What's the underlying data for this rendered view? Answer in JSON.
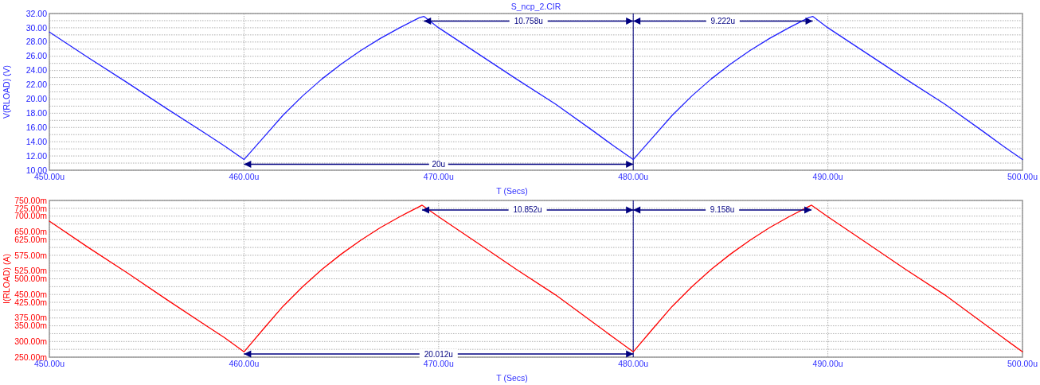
{
  "chart_data": [
    {
      "type": "line",
      "title": "S_ncp_2.CIR",
      "xlabel": "T (Secs)",
      "ylabel": "V(RLOAD) (V)",
      "x": [
        450,
        452,
        454,
        456,
        458,
        459,
        460,
        461,
        462,
        463,
        464,
        465,
        466,
        467,
        468,
        469,
        469.24,
        470,
        472,
        474,
        476,
        478,
        479,
        480,
        481,
        482,
        483,
        484,
        485,
        486,
        487,
        488,
        489,
        489.22,
        490,
        492,
        494,
        496,
        498,
        499,
        500
      ],
      "series": [
        {
          "color": "#2020ff",
          "values": [
            29.4,
            25.8,
            22.3,
            18.7,
            15.2,
            13.4,
            11.5,
            14.6,
            17.7,
            20.4,
            22.8,
            24.9,
            26.8,
            28.5,
            30.0,
            31.4,
            31.6,
            30.0,
            26.4,
            22.8,
            19.3,
            15.4,
            13.4,
            11.5,
            14.6,
            17.7,
            20.4,
            22.8,
            24.9,
            26.8,
            28.5,
            30.0,
            31.4,
            31.6,
            30.0,
            26.4,
            22.8,
            19.3,
            15.4,
            13.4,
            11.5
          ]
        }
      ],
      "xlim": [
        450,
        500
      ],
      "xticks": [
        {
          "value": 450,
          "label": "450.00u"
        },
        {
          "value": 460,
          "label": "460.00u"
        },
        {
          "value": 470,
          "label": "470.00u"
        },
        {
          "value": 480,
          "label": "480.00u"
        },
        {
          "value": 490,
          "label": "490.00u"
        },
        {
          "value": 500,
          "label": "500.00u"
        }
      ],
      "ylim": [
        10,
        32
      ],
      "yticks": [
        {
          "value": 10,
          "label": "10.00"
        },
        {
          "value": 11,
          "label": null
        },
        {
          "value": 12,
          "label": "12.00"
        },
        {
          "value": 13,
          "label": null
        },
        {
          "value": 14,
          "label": "14.00"
        },
        {
          "value": 15,
          "label": null
        },
        {
          "value": 16,
          "label": "16.00"
        },
        {
          "value": 17,
          "label": null
        },
        {
          "value": 18,
          "label": "18.00"
        },
        {
          "value": 19,
          "label": null
        },
        {
          "value": 20,
          "label": "20.00"
        },
        {
          "value": 21,
          "label": null
        },
        {
          "value": 22,
          "label": "22.00"
        },
        {
          "value": 23,
          "label": null
        },
        {
          "value": 24,
          "label": "24.00"
        },
        {
          "value": 25,
          "label": null
        },
        {
          "value": 26,
          "label": "26.00"
        },
        {
          "value": 27,
          "label": null
        },
        {
          "value": 28,
          "label": "28.00"
        },
        {
          "value": 29,
          "label": null
        },
        {
          "value": 30,
          "label": "30.00"
        },
        {
          "value": 31,
          "label": null
        },
        {
          "value": 32,
          "label": "32.00"
        }
      ],
      "grid": true,
      "ref_lines": [
        {
          "axis": "x",
          "value": 480,
          "color": "#000080"
        }
      ],
      "annotations": [
        "10.758u",
        "9.222u",
        "20u"
      ]
    },
    {
      "type": "line",
      "xlabel": "T (Secs)",
      "ylabel": "I(RLOAD) (A)",
      "x": [
        450,
        452,
        454,
        456,
        458,
        459,
        460,
        461,
        462,
        463,
        464,
        465,
        466,
        467,
        468,
        469,
        469.15,
        470,
        472,
        474,
        476,
        478,
        479,
        480,
        481,
        482,
        483,
        484,
        485,
        486,
        487,
        488,
        489,
        489.16,
        490,
        492,
        494,
        496,
        498,
        499,
        500
      ],
      "series": [
        {
          "color": "#ff0000",
          "values": [
            684,
            600,
            519,
            435,
            353,
            312,
            267,
            340,
            412,
            474,
            530,
            579,
            623,
            663,
            698,
            730,
            735,
            698,
            614,
            530,
            449,
            358,
            312,
            267,
            340,
            412,
            474,
            530,
            579,
            623,
            663,
            698,
            730,
            735,
            698,
            614,
            530,
            449,
            358,
            312,
            267
          ]
        }
      ],
      "xlim": [
        450,
        500
      ],
      "xticks": [
        {
          "value": 450,
          "label": "450.00u"
        },
        {
          "value": 460,
          "label": "460.00u"
        },
        {
          "value": 470,
          "label": "470.00u"
        },
        {
          "value": 480,
          "label": "480.00u"
        },
        {
          "value": 490,
          "label": "490.00u"
        },
        {
          "value": 500,
          "label": "500.00u"
        }
      ],
      "ylim": [
        250,
        750
      ],
      "yticks": [
        {
          "value": 250,
          "label": "250.00m"
        },
        {
          "value": 275,
          "label": null
        },
        {
          "value": 300,
          "label": "300.00m"
        },
        {
          "value": 325,
          "label": null
        },
        {
          "value": 350,
          "label": "350.00m"
        },
        {
          "value": 375,
          "label": "375.00m"
        },
        {
          "value": 400,
          "label": null
        },
        {
          "value": 425,
          "label": "425.00m"
        },
        {
          "value": 450,
          "label": "450.00m"
        },
        {
          "value": 475,
          "label": null
        },
        {
          "value": 500,
          "label": "500.00m"
        },
        {
          "value": 525,
          "label": "525.00m"
        },
        {
          "value": 550,
          "label": null
        },
        {
          "value": 575,
          "label": "575.00m"
        },
        {
          "value": 600,
          "label": null
        },
        {
          "value": 625,
          "label": "625.00m"
        },
        {
          "value": 650,
          "label": "650.00m"
        },
        {
          "value": 675,
          "label": null
        },
        {
          "value": 700,
          "label": "700.00m"
        },
        {
          "value": 725,
          "label": "725.00m"
        },
        {
          "value": 750,
          "label": "750.00m"
        }
      ],
      "grid": true,
      "ref_lines": [
        {
          "axis": "x",
          "value": 480,
          "color": "#000080"
        }
      ],
      "annotations": [
        "10.852u",
        "9.158u",
        "20.012u"
      ]
    }
  ]
}
